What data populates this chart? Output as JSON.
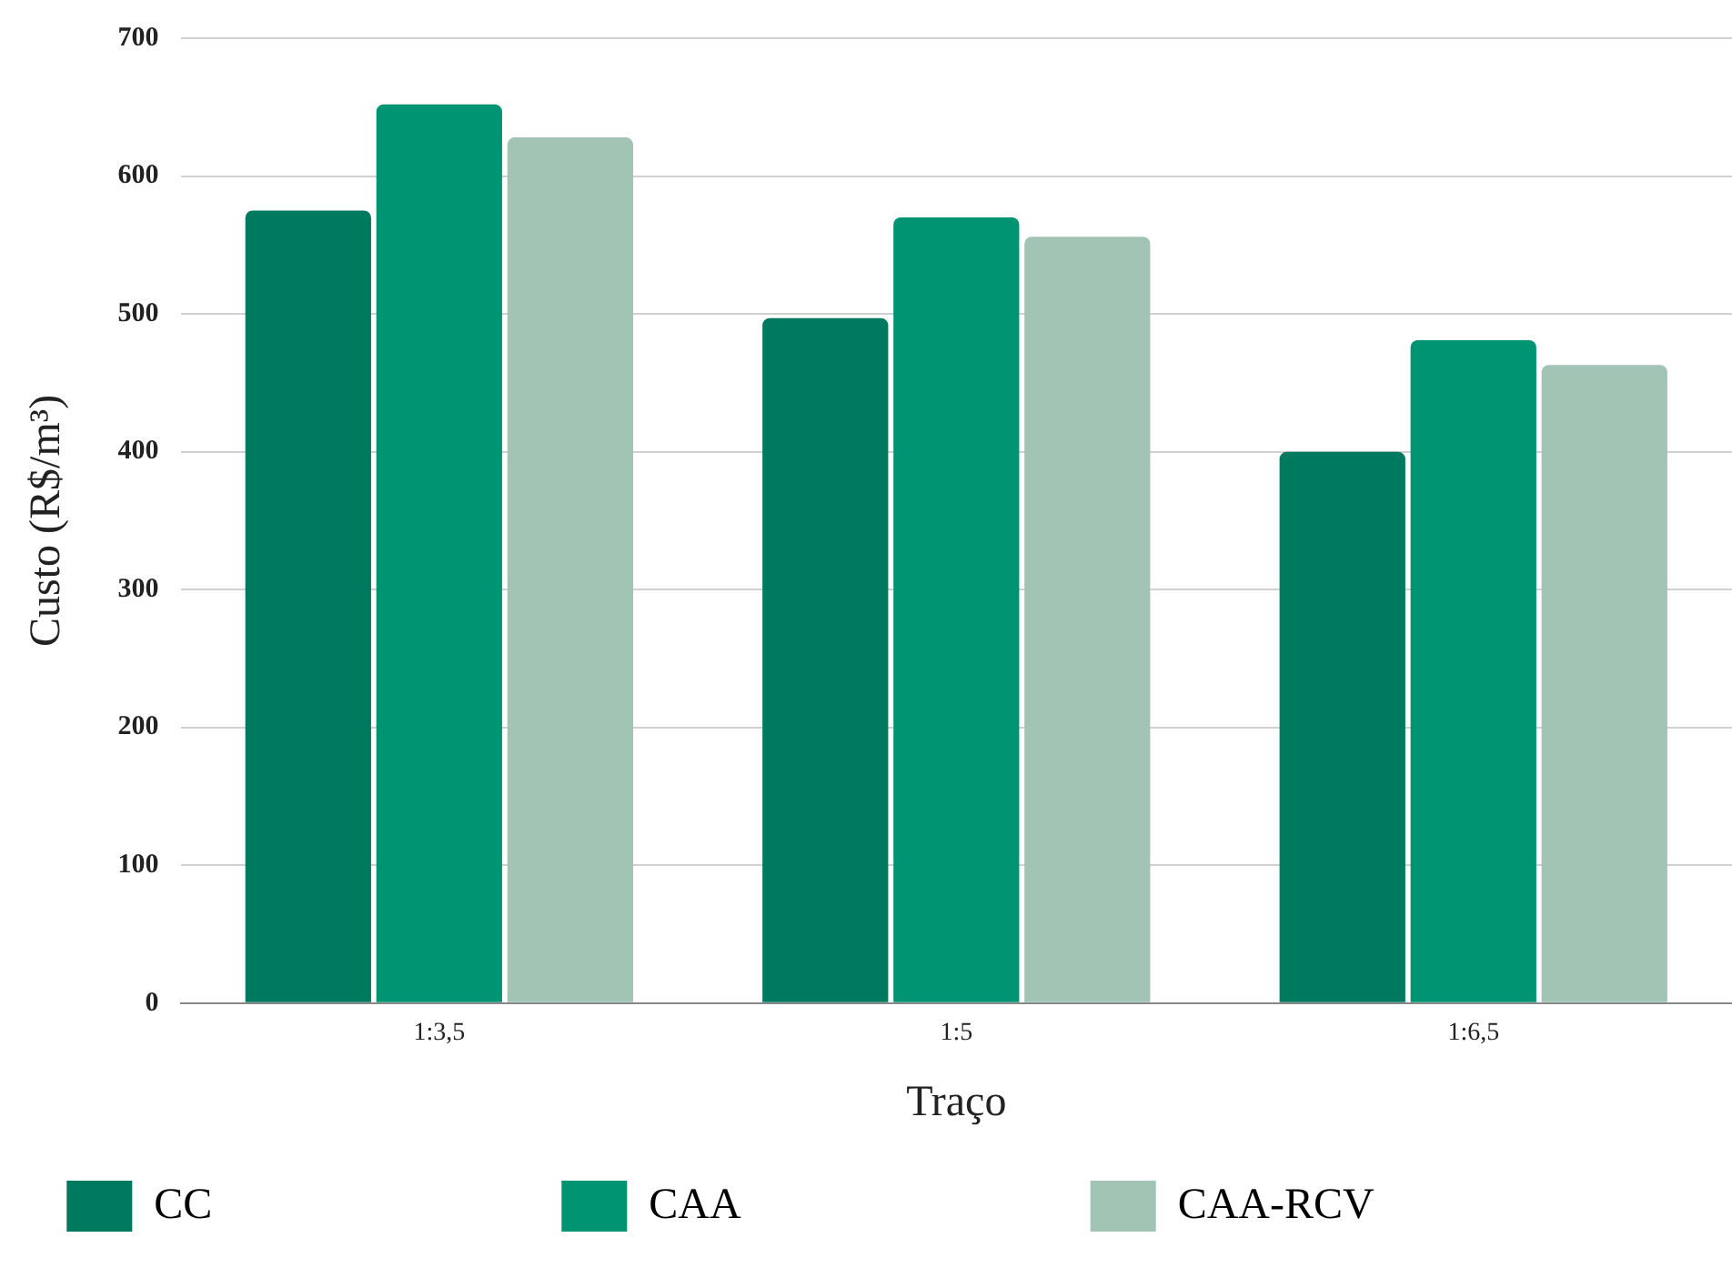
{
  "chart_data": {
    "type": "bar",
    "xlabel": "Traço",
    "ylabel": "Custo (R$/m³)",
    "categories": [
      "1:3,5",
      "1:5",
      "1:6,5"
    ],
    "series": [
      {
        "name": "CC",
        "color": "#007a5e",
        "values": [
          575,
          497,
          400
        ]
      },
      {
        "name": "CAA",
        "color": "#009473",
        "values": [
          652,
          570,
          481
        ]
      },
      {
        "name": "CAA-RCV",
        "color": "#a1c4b4",
        "values": [
          628,
          556,
          463
        ]
      }
    ],
    "ylim": [
      0,
      700
    ],
    "yticks": [
      0,
      100,
      200,
      300,
      400,
      500,
      600,
      700
    ],
    "grid": "y",
    "legend": "bottom"
  }
}
